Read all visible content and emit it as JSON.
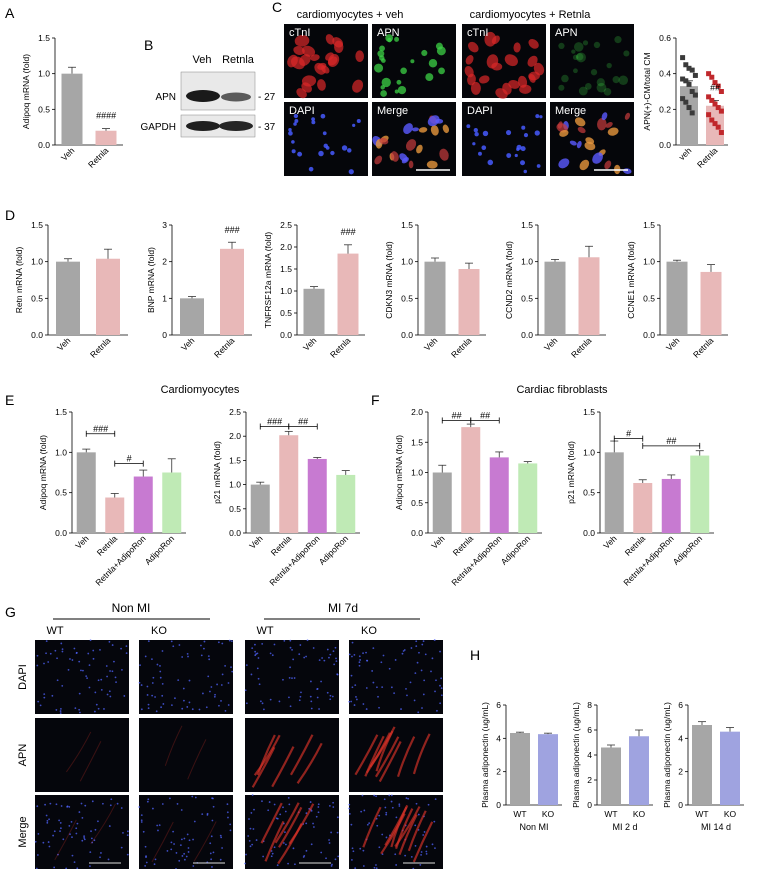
{
  "panels": {
    "A": "A",
    "B": "B",
    "C": "C",
    "D": "D",
    "E": "E",
    "F": "F",
    "G": "G",
    "H": "H"
  },
  "colors": {
    "veh": "#a6a6a6",
    "retnla": "#e8b8b8",
    "combo": "#c77ad1",
    "adiporon": "#bfeab5",
    "ko": "#9fa3e0",
    "dot_veh": "#3a3a3a",
    "dot_retnla": "#c0282c"
  },
  "western": {
    "lanes": [
      "Veh",
      "Retnla"
    ],
    "rows": [
      {
        "label": "APN",
        "marker": "- 27"
      },
      {
        "label": "GAPDH",
        "marker": "- 37"
      }
    ]
  },
  "micrographs_c": {
    "group_titles": [
      "cardiomyocytes + veh",
      "cardiomyocytes + Retnla"
    ],
    "tiles": [
      {
        "label": "cTnI",
        "stain": "red"
      },
      {
        "label": "APN",
        "stain": "green"
      },
      {
        "label": "cTnI",
        "stain": "red"
      },
      {
        "label": "APN",
        "stain": "green"
      },
      {
        "label": "DAPI",
        "stain": "blue"
      },
      {
        "label": "Merge",
        "stain": "merge"
      },
      {
        "label": "DAPI",
        "stain": "blue"
      },
      {
        "label": "Merge",
        "stain": "merge"
      }
    ]
  },
  "section_titles": {
    "E": "Cardiomyocytes",
    "F": "Cardiac fibroblasts"
  },
  "tissue_g": {
    "group_titles": [
      "Non MI",
      "MI 7d"
    ],
    "columns": [
      "WT",
      "KO",
      "WT",
      "KO"
    ],
    "rows": [
      "DAPI",
      "APN",
      "Merge"
    ]
  },
  "chart_data": [
    {
      "id": "A",
      "type": "bar",
      "categories": [
        "Veh",
        "Retnla"
      ],
      "values": [
        1.0,
        0.2
      ],
      "errors": [
        0.09,
        0.03
      ],
      "ylabel": "Adipoq mRNA (fold)",
      "ylim": [
        0,
        1.5
      ],
      "yticks": [
        "0.0",
        "0.5",
        "1.0",
        "1.5"
      ],
      "annotations": [
        {
          "bar": 1,
          "text": "####"
        }
      ]
    },
    {
      "id": "C",
      "type": "bar",
      "categories": [
        "veh",
        "Retnla"
      ],
      "values": [
        0.33,
        0.22
      ],
      "errors": [
        0.03,
        0.03
      ],
      "ylabel": "APN(+)-CM/total CM",
      "ylim": [
        0,
        0.6
      ],
      "yticks": [
        "0.0",
        "0.2",
        "0.4",
        "0.6"
      ],
      "annotations": [
        {
          "bar": 1,
          "text": "##"
        }
      ],
      "points": [
        [
          0.49,
          0.45,
          0.43,
          0.42,
          0.39,
          0.37,
          0.36,
          0.34,
          0.3,
          0.28,
          0.26,
          0.24,
          0.21,
          0.18
        ],
        [
          0.4,
          0.38,
          0.35,
          0.33,
          0.3,
          0.27,
          0.25,
          0.23,
          0.21,
          0.19,
          0.17,
          0.14,
          0.12,
          0.1,
          0.07
        ]
      ]
    },
    {
      "id": "D1",
      "type": "bar",
      "categories": [
        "Veh",
        "Retnla"
      ],
      "values": [
        1.0,
        1.04
      ],
      "errors": [
        0.04,
        0.13
      ],
      "ylabel": "Retn mRNA (fold)",
      "ylim": [
        0,
        1.5
      ],
      "yticks": [
        "0.0",
        "0.5",
        "1.0",
        "1.5"
      ],
      "annotations": []
    },
    {
      "id": "D2",
      "type": "bar",
      "categories": [
        "Veh",
        "Retnla"
      ],
      "values": [
        1.0,
        2.35
      ],
      "errors": [
        0.05,
        0.18
      ],
      "ylabel": "BNP mRNA (fold)",
      "ylim": [
        0,
        3
      ],
      "yticks": [
        "0",
        "1",
        "2",
        "3"
      ],
      "annotations": [
        {
          "bar": 1,
          "text": "###"
        }
      ]
    },
    {
      "id": "D3",
      "type": "bar",
      "categories": [
        "Veh",
        "Retnla"
      ],
      "values": [
        1.05,
        1.85
      ],
      "errors": [
        0.05,
        0.2
      ],
      "ylabel": "TNFRSF12a mRNA (fold)",
      "ylim": [
        0,
        2.5
      ],
      "yticks": [
        "0.0",
        "0.5",
        "1.0",
        "1.5",
        "2.0",
        "2.5"
      ],
      "annotations": [
        {
          "bar": 1,
          "text": "###"
        }
      ]
    },
    {
      "id": "D4",
      "type": "bar",
      "categories": [
        "Veh",
        "Retnla"
      ],
      "values": [
        1.0,
        0.9
      ],
      "errors": [
        0.05,
        0.08
      ],
      "ylabel": "CDKN3 mRNA (fold)",
      "ylim": [
        0,
        1.5
      ],
      "yticks": [
        "0.0",
        "0.5",
        "1.0",
        "1.5"
      ],
      "annotations": []
    },
    {
      "id": "D5",
      "type": "bar",
      "categories": [
        "Veh",
        "Retnla"
      ],
      "values": [
        1.0,
        1.06
      ],
      "errors": [
        0.03,
        0.15
      ],
      "ylabel": "CCND2 mRNA (fold)",
      "ylim": [
        0,
        1.5
      ],
      "yticks": [
        "0.0",
        "0.5",
        "1.0",
        "1.5"
      ],
      "annotations": []
    },
    {
      "id": "D6",
      "type": "bar",
      "categories": [
        "Veh",
        "Retnla"
      ],
      "values": [
        1.0,
        0.86
      ],
      "errors": [
        0.02,
        0.1
      ],
      "ylabel": "CCNE1 mRNA (fold)",
      "ylim": [
        0,
        1.5
      ],
      "yticks": [
        "0.0",
        "0.5",
        "1.0",
        "1.5"
      ],
      "annotations": []
    },
    {
      "id": "E1",
      "type": "bar",
      "categories": [
        "Veh",
        "Retnla",
        "Retnla+AdipoRon",
        "AdipoRon"
      ],
      "values": [
        1.0,
        0.44,
        0.7,
        0.75
      ],
      "errors": [
        0.04,
        0.05,
        0.08,
        0.17
      ],
      "ylabel": "Adipoq mRNA (fold)",
      "ylim": [
        0,
        1.5
      ],
      "yticks": [
        "0.0",
        "0.5",
        "1.0",
        "1.5"
      ],
      "annotations": [
        {
          "from": 0,
          "to": 1,
          "text": "###",
          "y": 1.23
        },
        {
          "from": 1,
          "to": 2,
          "text": "#",
          "y": 0.86
        }
      ]
    },
    {
      "id": "E2",
      "type": "bar",
      "categories": [
        "Veh",
        "Retnla",
        "Retnla+AdipoRon",
        "AdipoRon"
      ],
      "values": [
        1.0,
        2.02,
        1.53,
        1.2
      ],
      "errors": [
        0.05,
        0.08,
        0.03,
        0.09
      ],
      "ylabel": "p21 mRNA (fold)",
      "ylim": [
        0,
        2.5
      ],
      "yticks": [
        "0.0",
        "0.5",
        "1.0",
        "1.5",
        "2.0",
        "2.5"
      ],
      "annotations": [
        {
          "from": 0,
          "to": 1,
          "text": "###",
          "y": 2.2
        },
        {
          "from": 1,
          "to": 2,
          "text": "##",
          "y": 2.2
        }
      ]
    },
    {
      "id": "F1",
      "type": "bar",
      "categories": [
        "Veh",
        "Retnla",
        "Retnla+AdipoRon",
        "AdipoRon"
      ],
      "values": [
        1.0,
        1.75,
        1.25,
        1.15
      ],
      "errors": [
        0.12,
        0.05,
        0.09,
        0.03
      ],
      "ylabel": "Adipoq mRNA (fold)",
      "ylim": [
        0,
        2.0
      ],
      "yticks": [
        "0.0",
        "0.5",
        "1.0",
        "1.5",
        "2.0"
      ],
      "annotations": [
        {
          "from": 0,
          "to": 1,
          "text": "##",
          "y": 1.86
        },
        {
          "from": 1,
          "to": 2,
          "text": "##",
          "y": 1.86
        }
      ]
    },
    {
      "id": "F2",
      "type": "bar",
      "categories": [
        "Veh",
        "Retnla",
        "Retnla+AdipoRon",
        "AdipoRon"
      ],
      "values": [
        1.0,
        0.62,
        0.67,
        0.96
      ],
      "errors": [
        0.14,
        0.04,
        0.05,
        0.06
      ],
      "ylabel": "p21 mRNA (fold)",
      "ylim": [
        0,
        1.5
      ],
      "yticks": [
        "0.0",
        "0.5",
        "1.0",
        "1.5"
      ],
      "annotations": [
        {
          "from": 0,
          "to": 1,
          "text": "#",
          "y": 1.17
        },
        {
          "from": 1,
          "to": 3,
          "text": "##",
          "y": 1.08
        }
      ]
    },
    {
      "id": "H1",
      "type": "bar",
      "categories": [
        "WT",
        "KO"
      ],
      "values": [
        4.32,
        4.25
      ],
      "errors": [
        0.05,
        0.06
      ],
      "ylabel": "Plasma adiponectin (ug/mL)",
      "xlabel": "Non MI",
      "ylim": [
        0,
        6
      ],
      "yticks": [
        "0",
        "2",
        "4",
        "6"
      ],
      "annotations": []
    },
    {
      "id": "H2",
      "type": "bar",
      "categories": [
        "WT",
        "KO"
      ],
      "values": [
        4.6,
        5.5
      ],
      "errors": [
        0.2,
        0.5
      ],
      "ylabel": "Plasma adiponectin (ug/mL)",
      "xlabel": "MI 2 d",
      "ylim": [
        0,
        8
      ],
      "yticks": [
        "0",
        "2",
        "4",
        "6",
        "8"
      ],
      "annotations": []
    },
    {
      "id": "H3",
      "type": "bar",
      "categories": [
        "WT",
        "KO"
      ],
      "values": [
        4.8,
        4.4
      ],
      "errors": [
        0.2,
        0.25
      ],
      "ylabel": "Plasma adiponectin (ug/mL)",
      "xlabel": "MI 14 d",
      "ylim": [
        0,
        6
      ],
      "yticks": [
        "0",
        "2",
        "4",
        "6"
      ],
      "annotations": []
    }
  ]
}
